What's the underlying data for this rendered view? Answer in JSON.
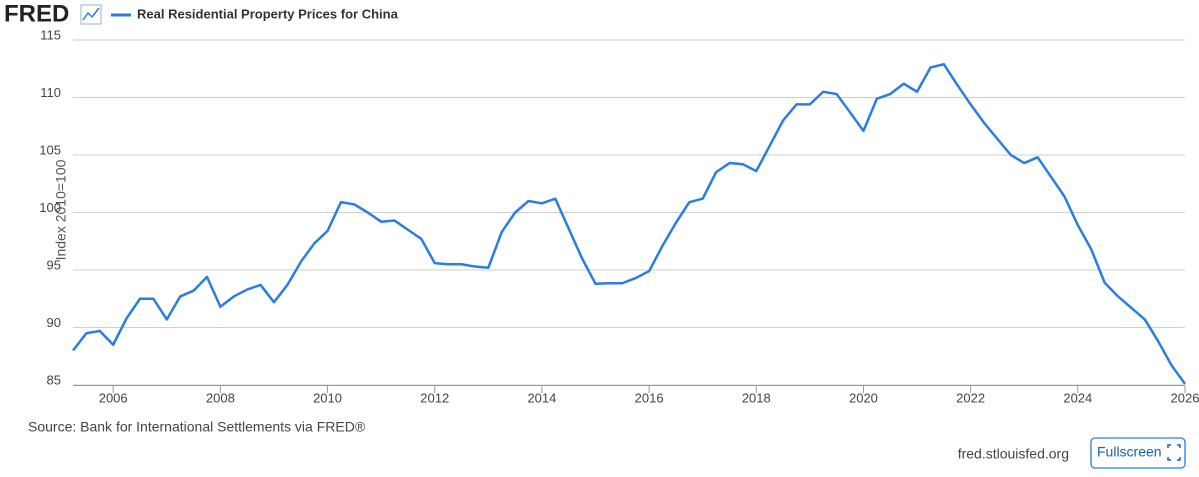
{
  "page": {
    "logo": "FRED",
    "site": "fred.stlouisfed.org",
    "button": "Fullscreen"
  },
  "chart_data": {
    "type": "line",
    "ylabel": "Index 2010=100",
    "source": "Source: Bank for International Settlements via FRED®",
    "x": [
      2005.25,
      2005.5,
      2005.75,
      2006,
      2006.25,
      2006.5,
      2006.75,
      2007,
      2007.25,
      2007.5,
      2007.75,
      2008,
      2008.25,
      2008.5,
      2008.75,
      2009,
      2009.25,
      2009.5,
      2009.75,
      2010,
      2010.25,
      2010.5,
      2010.75,
      2011,
      2011.25,
      2011.5,
      2011.75,
      2012,
      2012.25,
      2012.5,
      2012.75,
      2013,
      2013.25,
      2013.5,
      2013.75,
      2014,
      2014.25,
      2014.5,
      2014.75,
      2015,
      2015.25,
      2015.5,
      2015.75,
      2016,
      2016.25,
      2016.5,
      2016.75,
      2017,
      2017.25,
      2017.5,
      2017.75,
      2018,
      2018.25,
      2018.5,
      2018.75,
      2019,
      2019.25,
      2019.5,
      2019.75,
      2020,
      2020.25,
      2020.5,
      2020.75,
      2021,
      2021.25,
      2021.5,
      2021.75,
      2022,
      2022.25,
      2022.5,
      2022.75,
      2023,
      2023.25,
      2023.5,
      2023.75,
      2024,
      2024.25,
      2024.5,
      2024.75,
      2025,
      2025.25,
      2025.5,
      2025.75,
      2026
    ],
    "series": [
      {
        "name": "Real Residential Property Prices for China",
        "color": "#2a7de1",
        "values": [
          88,
          89.5,
          89.7,
          88.5,
          90.8,
          92.5,
          92.5,
          90.7,
          92.7,
          93.2,
          94.4,
          91.8,
          92.7,
          93.3,
          93.7,
          92.2,
          93.7,
          95.7,
          97.3,
          98.4,
          100.9,
          100.7,
          100.0,
          99.2,
          99.3,
          98.5,
          97.7,
          95.6,
          95.5,
          95.5,
          95.3,
          95.2,
          98.3,
          100.0,
          101.0,
          100.8,
          101.2,
          98.6,
          96.0,
          93.8,
          93.85,
          93.85,
          94.3,
          94.9,
          97.1,
          99.1,
          100.9,
          101.2,
          103.5,
          104.3,
          104.2,
          103.6,
          105.8,
          108.0,
          109.4,
          109.4,
          110.5,
          110.3,
          108.7,
          107.1,
          109.9,
          110.3,
          111.2,
          110.5,
          112.6,
          112.9,
          111.1,
          109.4,
          107.8,
          106.4,
          105.0,
          104.3,
          104.8,
          103.1,
          101.4,
          98.9,
          96.8,
          93.9,
          92.7,
          91.7,
          90.7,
          88.8,
          86.7,
          85.1
        ]
      }
    ],
    "xlim": [
      2005.25,
      2026
    ],
    "xticks": [
      2006,
      2008,
      2010,
      2012,
      2014,
      2016,
      2018,
      2020,
      2022,
      2024,
      2026
    ],
    "ylim": [
      85,
      115
    ],
    "yticks": [
      85,
      90,
      95,
      100,
      105,
      110,
      115
    ],
    "grid": true
  }
}
